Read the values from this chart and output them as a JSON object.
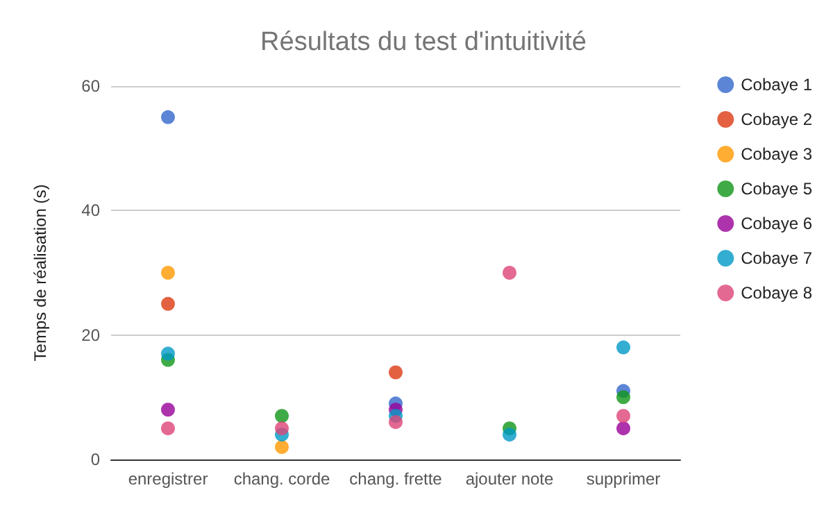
{
  "chart_data": {
    "type": "scatter",
    "title": "Résultats du test d'intuitivité",
    "ylabel": "Temps de réalisation (s)",
    "categories": [
      "enregistrer",
      "chang. corde",
      "chang. frette",
      "ajouter note",
      "supprimer"
    ],
    "series": [
      {
        "name": "Cobaye 1",
        "color": "#3366cc",
        "values": [
          55,
          null,
          9,
          null,
          11
        ]
      },
      {
        "name": "Cobaye 2",
        "color": "#dc3912",
        "values": [
          25,
          null,
          14,
          null,
          null
        ]
      },
      {
        "name": "Cobaye 3",
        "color": "#ff9900",
        "values": [
          30,
          2,
          null,
          null,
          null
        ]
      },
      {
        "name": "Cobaye 5",
        "color": "#109618",
        "values": [
          16,
          7,
          null,
          5,
          10
        ]
      },
      {
        "name": "Cobaye 6",
        "color": "#990099",
        "values": [
          8,
          null,
          8,
          null,
          5
        ]
      },
      {
        "name": "Cobaye 7",
        "color": "#0099c6",
        "values": [
          17,
          4,
          7,
          4,
          18
        ]
      },
      {
        "name": "Cobaye 8",
        "color": "#dd4477",
        "values": [
          5,
          5,
          6,
          30,
          7
        ]
      }
    ],
    "ylim": [
      0,
      60
    ],
    "yticks": [
      0,
      20,
      40,
      60
    ],
    "grid": "y",
    "legend": "right",
    "marker": "circle"
  }
}
